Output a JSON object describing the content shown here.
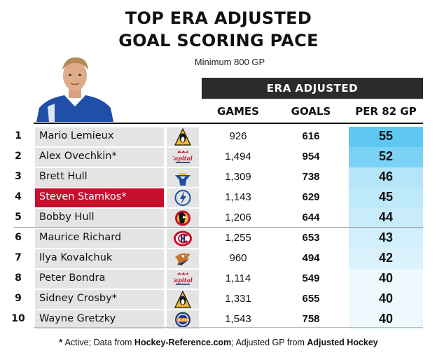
{
  "title_line1": "TOP ERA ADJUSTED",
  "title_line2": "GOAL SCORING PACE",
  "subtitle": "Minimum 800 GP",
  "group_header": "ERA ADJUSTED",
  "columns": {
    "games": "GAMES",
    "goals": "GOALS",
    "pace": "PER 82 GP"
  },
  "rows": [
    {
      "rank": "1",
      "name": "Mario Lemieux",
      "team": "penguins-logo",
      "games": "926",
      "goals": "616",
      "pace": "55"
    },
    {
      "rank": "2",
      "name": "Alex Ovechkin*",
      "team": "capitals-logo",
      "games": "1,494",
      "goals": "954",
      "pace": "52"
    },
    {
      "rank": "3",
      "name": "Brett Hull",
      "team": "blues-logo",
      "games": "1,309",
      "goals": "738",
      "pace": "46"
    },
    {
      "rank": "4",
      "name": "Steven Stamkos*",
      "team": "lightning-logo",
      "games": "1,143",
      "goals": "629",
      "pace": "45",
      "highlight": true
    },
    {
      "rank": "5",
      "name": "Bobby Hull",
      "team": "blackhawks-logo",
      "games": "1,206",
      "goals": "644",
      "pace": "44"
    },
    {
      "rank": "6",
      "name": "Maurice Richard",
      "team": "canadiens-logo",
      "games": "1,255",
      "goals": "653",
      "pace": "43"
    },
    {
      "rank": "7",
      "name": "Ilya Kovalchuk",
      "team": "thrashers-logo",
      "games": "960",
      "goals": "494",
      "pace": "42"
    },
    {
      "rank": "8",
      "name": "Peter Bondra",
      "team": "capitals-logo",
      "games": "1,114",
      "goals": "549",
      "pace": "40"
    },
    {
      "rank": "9",
      "name": "Sidney Crosby*",
      "team": "penguins-logo",
      "games": "1,331",
      "goals": "655",
      "pace": "40"
    },
    {
      "rank": "10",
      "name": "Wayne Gretzky",
      "team": "oilers-logo",
      "games": "1,543",
      "goals": "758",
      "pace": "40"
    }
  ],
  "footer": {
    "part1": "* ",
    "part2": "Active; Data from ",
    "part3": "Hockey-Reference.com",
    "part4": "; Adjusted GP from ",
    "part5": "Adjusted Hockey"
  },
  "colors": {
    "highlight_red": "#c8102e",
    "pace_scale": [
      "#eef9fe",
      "#5ec8f2"
    ],
    "header_bar": "#2b2b2b",
    "name_bg": "#e4e4e4"
  },
  "chart_data": {
    "type": "table",
    "title": "TOP ERA ADJUSTED GOAL SCORING PACE",
    "subtitle": "Minimum 800 GP",
    "columns": [
      "",
      "",
      "GAMES",
      "GOALS",
      "PER 82 GP"
    ],
    "categories": [
      "Mario Lemieux",
      "Alex Ovechkin*",
      "Brett Hull",
      "Steven Stamkos*",
      "Bobby Hull",
      "Maurice Richard",
      "Ilya Kovalchuk",
      "Peter Bondra",
      "Sidney Crosby*",
      "Wayne Gretzky"
    ],
    "series": [
      {
        "name": "GAMES",
        "values": [
          926,
          1494,
          1309,
          1143,
          1206,
          1255,
          960,
          1114,
          1331,
          1543
        ]
      },
      {
        "name": "GOALS",
        "values": [
          616,
          954,
          738,
          629,
          644,
          653,
          494,
          549,
          655,
          758
        ]
      },
      {
        "name": "PER 82 GP",
        "values": [
          55,
          52,
          46,
          45,
          44,
          43,
          42,
          40,
          40,
          40
        ]
      }
    ]
  }
}
